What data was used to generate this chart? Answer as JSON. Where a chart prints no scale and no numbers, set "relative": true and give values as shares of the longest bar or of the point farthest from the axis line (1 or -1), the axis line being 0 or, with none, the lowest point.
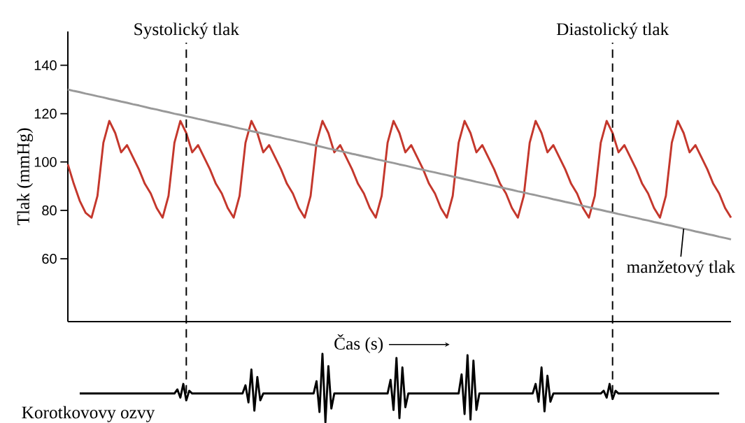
{
  "chart_data": [
    {
      "type": "line",
      "xlabel": "Čas (s)",
      "ylabel": "Tlak (mmHg)",
      "categories": [
        null,
        null,
        null,
        null,
        null,
        null,
        null,
        null,
        null,
        null,
        null,
        null,
        null,
        null,
        null,
        null,
        null,
        null,
        null,
        null,
        null,
        null,
        null,
        null,
        null,
        null,
        null,
        null,
        null,
        null,
        null,
        null,
        null,
        null,
        null,
        null,
        null,
        null,
        null,
        null,
        null,
        null,
        null,
        null,
        null,
        null,
        null,
        null,
        null,
        null,
        null,
        null,
        null,
        null,
        null,
        null,
        null,
        null,
        null,
        null,
        null,
        null,
        null,
        null,
        null,
        null,
        null,
        null,
        null,
        null,
        null,
        null,
        null,
        null,
        null,
        null,
        null,
        null,
        null,
        null,
        null,
        null,
        null,
        null,
        null,
        null,
        null,
        null,
        null,
        null,
        null,
        null,
        null,
        null,
        null,
        null,
        null,
        null,
        null,
        null,
        null,
        null,
        null,
        null,
        null,
        null,
        null,
        null,
        null,
        null,
        null,
        null,
        null
      ],
      "ylim": [
        34,
        154
      ],
      "yticks": [
        60,
        80,
        100,
        120,
        140
      ],
      "tick_labels": "y",
      "line_style": "solid",
      "marker": "none",
      "series": [
        {
          "color": "#c4372c",
          "values": [
            99,
            91,
            84,
            79,
            77,
            86,
            108,
            117,
            112,
            104,
            107,
            102,
            97,
            91,
            87,
            81,
            77,
            86,
            108,
            117,
            112,
            104,
            107,
            102,
            97,
            91,
            87,
            81,
            77,
            86,
            108,
            117,
            112,
            104,
            107,
            102,
            97,
            91,
            87,
            81,
            77,
            86,
            108,
            117,
            112,
            104,
            107,
            102,
            97,
            91,
            87,
            81,
            77,
            86,
            108,
            117,
            112,
            104,
            107,
            102,
            97,
            91,
            87,
            81,
            77,
            86,
            108,
            117,
            112,
            104,
            107,
            102,
            97,
            91,
            87,
            81,
            77,
            86,
            108,
            117,
            112,
            104,
            107,
            102,
            97,
            91,
            87,
            81,
            77,
            86,
            108,
            117,
            112,
            104,
            107,
            102,
            97,
            91,
            87,
            81,
            77,
            86,
            108,
            117,
            112,
            104,
            107,
            102,
            97,
            91,
            87,
            81,
            77
          ]
        },
        {
          "color": "#999999",
          "values": [
            130.0,
            129.4,
            128.9,
            128.3,
            127.8,
            127.2,
            126.7,
            126.1,
            125.6,
            125.0,
            124.5,
            123.9,
            123.4,
            122.8,
            122.2,
            121.7,
            121.1,
            120.6,
            120.0,
            119.5,
            118.9,
            118.4,
            117.8,
            117.3,
            116.7,
            116.2,
            115.6,
            115.1,
            114.5,
            113.9,
            113.4,
            112.8,
            112.3,
            111.7,
            111.2,
            110.6,
            110.1,
            109.5,
            109.0,
            108.4,
            107.9,
            107.3,
            106.8,
            106.2,
            105.6,
            105.1,
            104.5,
            104.0,
            103.4,
            102.9,
            102.3,
            101.8,
            101.2,
            100.7,
            100.1,
            99.6,
            99.0,
            98.5,
            97.9,
            97.3,
            96.8,
            96.2,
            95.7,
            95.1,
            94.6,
            94.0,
            93.5,
            92.9,
            92.4,
            91.8,
            91.3,
            90.7,
            90.2,
            89.6,
            89.0,
            88.5,
            87.9,
            87.4,
            86.8,
            86.3,
            85.7,
            85.2,
            84.6,
            84.1,
            83.5,
            83.0,
            82.4,
            81.9,
            81.3,
            80.7,
            80.2,
            79.6,
            79.1,
            78.5,
            78.0,
            77.4,
            76.9,
            76.3,
            75.8,
            75.2,
            74.7,
            74.1,
            73.6,
            73.0,
            72.4,
            71.9,
            71.3,
            70.8,
            70.2,
            69.7,
            69.1,
            68.6,
            68.0
          ]
        }
      ],
      "annotations": [
        "Systolický tlak",
        "Diastolický tlak",
        "manžetový tlak"
      ]
    },
    {
      "type": "line",
      "relative": true,
      "tick_labels": false,
      "line_style": "solid",
      "marker": "none",
      "categories": [
        null,
        null,
        null,
        null,
        null,
        null,
        null,
        null,
        null,
        null,
        null,
        null,
        null,
        null,
        null,
        null,
        null,
        null,
        null,
        null,
        null,
        null,
        null,
        null,
        null,
        null,
        null,
        null,
        null,
        null,
        null,
        null,
        null,
        null,
        null,
        null,
        null,
        null,
        null,
        null,
        null,
        null,
        null,
        null,
        null,
        null,
        null,
        null,
        null,
        null,
        null,
        null,
        null,
        null,
        null,
        null,
        null,
        null,
        null,
        null,
        null,
        null,
        null,
        null,
        null,
        null,
        null,
        null,
        null,
        null,
        null,
        null,
        null,
        null,
        null,
        null,
        null,
        null,
        null,
        null,
        null,
        null,
        null,
        null,
        null,
        null,
        null,
        null,
        null,
        null,
        null,
        null,
        null,
        null,
        null,
        null,
        null,
        null,
        null,
        null,
        null,
        null,
        null,
        null,
        null,
        null,
        null,
        null,
        null,
        null,
        null,
        null,
        null,
        null,
        null,
        null,
        null,
        null,
        null,
        null,
        null,
        null,
        null,
        null,
        null,
        null,
        null,
        null,
        null,
        null,
        null,
        null,
        null,
        null,
        null,
        null,
        null,
        null,
        null,
        null,
        null,
        null,
        null,
        null,
        null,
        null,
        null,
        null,
        null,
        null,
        null,
        null,
        null,
        null,
        null,
        null,
        null,
        null,
        null,
        null,
        null,
        null,
        null,
        null,
        null,
        null,
        null,
        null,
        null,
        null,
        null,
        null,
        null,
        null,
        null,
        null,
        null,
        null,
        null,
        null,
        null,
        null,
        null,
        null,
        null,
        null,
        null,
        null,
        null,
        null,
        null,
        null,
        null,
        null,
        null,
        null,
        null,
        null,
        null,
        null,
        null,
        null,
        null,
        null,
        null,
        null,
        null,
        null,
        null,
        null,
        null,
        null,
        null,
        null,
        null,
        null,
        null,
        null,
        null,
        null,
        null,
        null,
        null,
        null,
        null
      ],
      "series": [
        {
          "color": "#000000",
          "values": [
            null,
            null,
            null,
            null,
            0.42,
            0.42,
            0.42,
            0.42,
            0.42,
            0.42,
            0.42,
            0.42,
            0.42,
            0.42,
            0.42,
            0.42,
            0.42,
            0.42,
            0.42,
            0.42,
            0.42,
            0.42,
            0.42,
            0.42,
            0.42,
            0.42,
            0.42,
            0.42,
            0.42,
            0.42,
            0.42,
            0.42,
            0.42,
            0.42,
            0.42,
            0.42,
            0.42,
            0.48,
            0.36,
            0.56,
            0.32,
            0.46,
            0.42,
            0.42,
            0.42,
            0.42,
            0.42,
            0.42,
            0.42,
            0.42,
            0.42,
            0.42,
            0.42,
            0.42,
            0.42,
            0.42,
            0.42,
            0.42,
            0.42,
            0.42,
            0.54,
            0.29,
            0.77,
            0.17,
            0.66,
            0.32,
            0.42,
            0.42,
            0.42,
            0.42,
            0.42,
            0.42,
            0.42,
            0.42,
            0.42,
            0.42,
            0.42,
            0.42,
            0.42,
            0.42,
            0.42,
            0.42,
            0.42,
            0.42,
            0.6,
            0.15,
            1.0,
            0.0,
            0.82,
            0.2,
            0.42,
            0.42,
            0.42,
            0.42,
            0.42,
            0.42,
            0.42,
            0.42,
            0.42,
            0.42,
            0.42,
            0.42,
            0.42,
            0.42,
            0.42,
            0.42,
            0.42,
            0.42,
            0.42,
            0.62,
            0.18,
            0.94,
            0.06,
            0.8,
            0.22,
            0.42,
            0.42,
            0.42,
            0.42,
            0.42,
            0.42,
            0.42,
            0.42,
            0.42,
            0.42,
            0.42,
            0.42,
            0.42,
            0.42,
            0.42,
            0.42,
            0.42,
            0.42,
            0.7,
            0.12,
            0.98,
            0.04,
            0.9,
            0.18,
            0.42,
            0.42,
            0.42,
            0.42,
            0.42,
            0.42,
            0.42,
            0.42,
            0.42,
            0.42,
            0.42,
            0.42,
            0.42,
            0.42,
            0.42,
            0.42,
            0.42,
            0.42,
            0.42,
            0.56,
            0.3,
            0.8,
            0.16,
            0.68,
            0.3,
            0.42,
            0.42,
            0.42,
            0.42,
            0.42,
            0.42,
            0.42,
            0.42,
            0.42,
            0.42,
            0.42,
            0.42,
            0.42,
            0.42,
            0.42,
            0.42,
            0.42,
            0.46,
            0.36,
            0.56,
            0.34,
            0.46,
            0.42,
            0.42,
            0.42,
            0.42,
            0.42,
            0.42,
            0.42,
            0.42,
            0.42,
            0.42,
            0.42,
            0.42,
            0.42,
            0.42,
            0.42,
            0.42,
            0.42,
            0.42,
            0.42,
            0.42,
            0.42,
            0.42,
            0.42,
            0.42,
            0.42,
            0.42,
            0.42,
            0.42,
            0.42,
            0.42,
            0.42,
            0.42,
            0.42,
            0.42,
            0.42,
            null,
            null,
            null,
            null
          ]
        }
      ],
      "annotations": [
        "Korotkovovy ozvy"
      ]
    }
  ]
}
